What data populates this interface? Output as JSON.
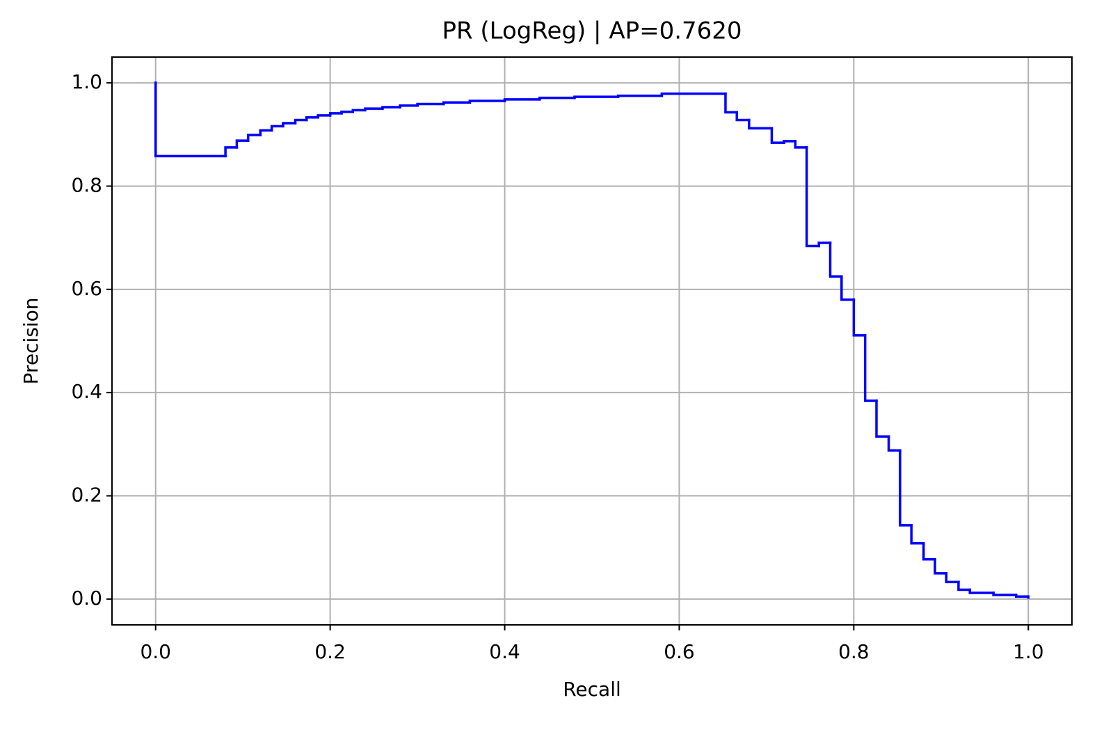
{
  "chart_data": {
    "type": "line",
    "drawstyle": "steps-post",
    "title": "PR (LogReg) | AP=0.7620",
    "xlabel": "Recall",
    "ylabel": "Precision",
    "x": [
      0,
      0,
      0.08,
      0.093,
      0.106,
      0.12,
      0.133,
      0.146,
      0.16,
      0.173,
      0.186,
      0.2,
      0.213,
      0.226,
      0.24,
      0.26,
      0.28,
      0.3,
      0.33,
      0.36,
      0.4,
      0.44,
      0.48,
      0.53,
      0.58,
      0.653,
      0.666,
      0.68,
      0.706,
      0.72,
      0.733,
      0.746,
      0.76,
      0.773,
      0.786,
      0.8,
      0.813,
      0.826,
      0.84,
      0.853,
      0.866,
      0.88,
      0.893,
      0.906,
      0.92,
      0.933,
      0.96,
      0.986,
      1.0
    ],
    "series": [
      {
        "color": "#0000ff",
        "values": [
          1.0,
          0.858,
          0.875,
          0.888,
          0.899,
          0.908,
          0.916,
          0.922,
          0.928,
          0.933,
          0.937,
          0.941,
          0.944,
          0.947,
          0.95,
          0.953,
          0.956,
          0.959,
          0.962,
          0.965,
          0.968,
          0.971,
          0.973,
          0.975,
          0.979,
          0.943,
          0.928,
          0.912,
          0.884,
          0.887,
          0.875,
          0.684,
          0.69,
          0.625,
          0.58,
          0.511,
          0.384,
          0.315,
          0.288,
          0.143,
          0.108,
          0.077,
          0.05,
          0.033,
          0.018,
          0.012,
          0.008,
          0.005,
          0.003
        ]
      }
    ],
    "xlim": [
      -0.05,
      1.05
    ],
    "ylim": [
      -0.05,
      1.05
    ],
    "xticks": [
      {
        "value": 0,
        "label": "0.0"
      },
      0.2,
      0.4,
      0.6,
      0.8,
      {
        "value": 1,
        "label": "1.0"
      }
    ],
    "yticks": [
      {
        "value": 0,
        "label": "0.0"
      },
      0.2,
      0.4,
      0.6,
      0.8,
      {
        "value": 1,
        "label": "1.0"
      }
    ],
    "grid": true
  }
}
